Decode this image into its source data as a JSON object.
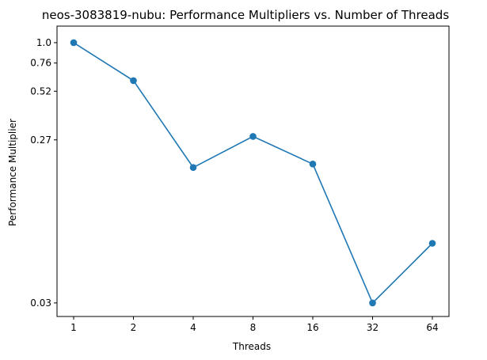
{
  "chart_data": {
    "type": "line",
    "title": "neos-3083819-nubu: Performance Multipliers vs. Number of Threads",
    "xlabel": "Threads",
    "ylabel": "Performance Multiplier",
    "x_scale": "log2",
    "y_scale": "log",
    "categories": [
      "1",
      "2",
      "4",
      "8",
      "16",
      "32",
      "64"
    ],
    "x": [
      1,
      2,
      4,
      8,
      16,
      32,
      64
    ],
    "y_ticks": [
      {
        "value": 1.0,
        "label": "1.0"
      },
      {
        "value": 0.76,
        "label": "0.76"
      },
      {
        "value": 0.52,
        "label": "0.52"
      },
      {
        "value": 0.27,
        "label": "0.27"
      },
      {
        "value": 0.03,
        "label": "0.03"
      }
    ],
    "series": [
      {
        "values": [
          1.0,
          0.6,
          0.186,
          0.283,
          0.195,
          0.03,
          0.067
        ]
      }
    ],
    "ylim": [
      0.025,
      1.25
    ],
    "grid": false,
    "legend": "none",
    "color": "#1f77b4"
  }
}
